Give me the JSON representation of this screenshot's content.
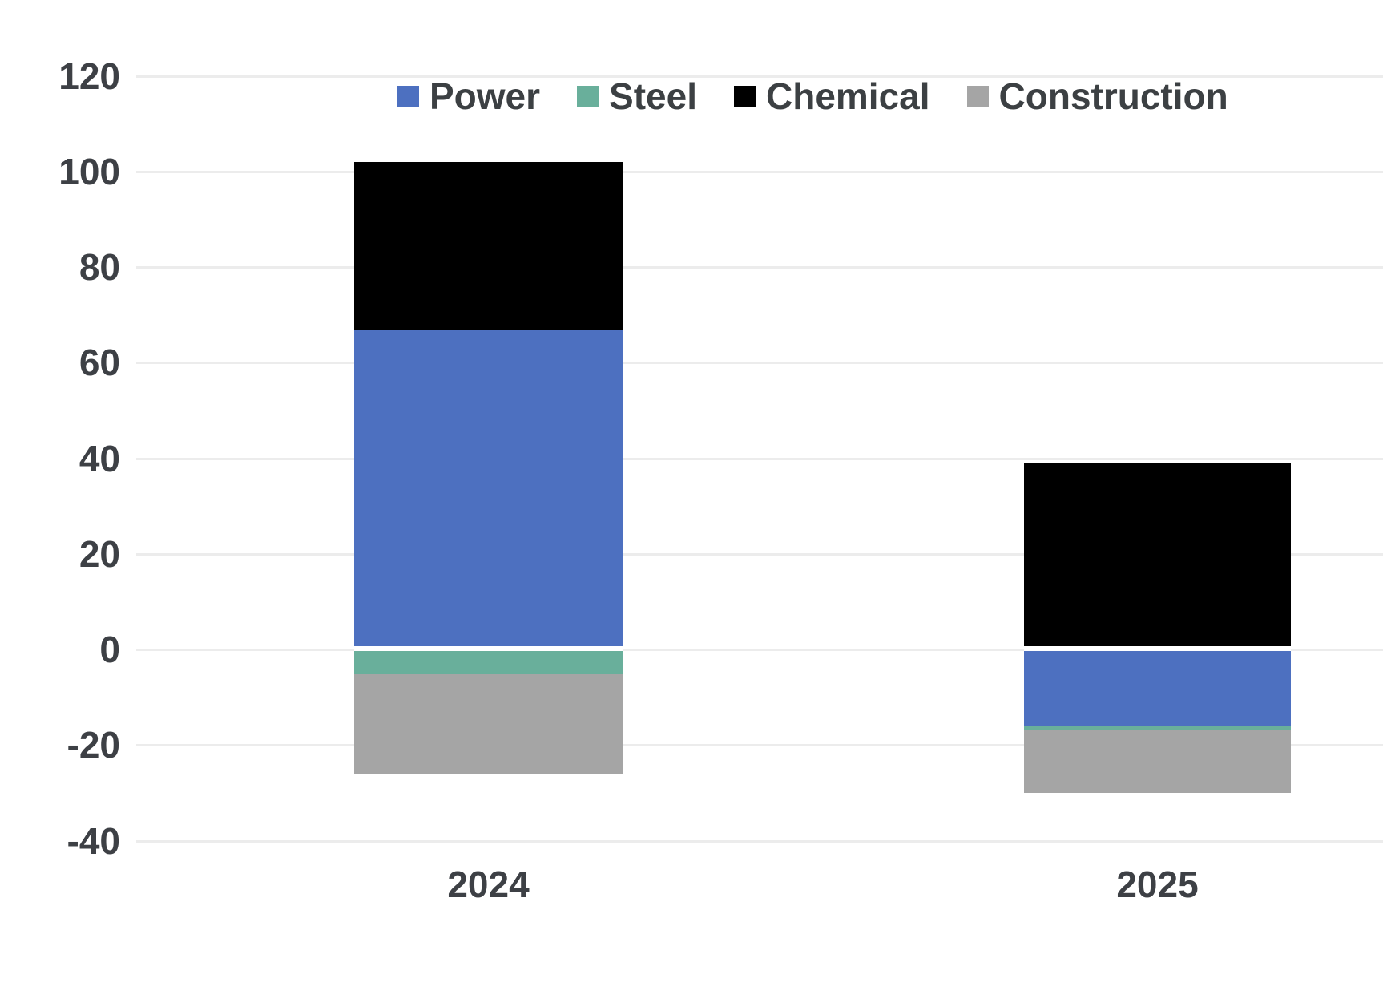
{
  "chart_data": {
    "type": "bar",
    "stacked": true,
    "title": "",
    "xlabel": "",
    "ylabel": "",
    "categories": [
      "2024",
      "2025"
    ],
    "series": [
      {
        "name": "Power",
        "color": "#4d70c0",
        "values": [
          67,
          -16
        ]
      },
      {
        "name": "Steel",
        "color": "#69af9b",
        "values": [
          -5,
          -1
        ]
      },
      {
        "name": "Chemical",
        "color": "#000000",
        "values": [
          35,
          39
        ]
      },
      {
        "name": "Construction",
        "color": "#a5a5a5",
        "values": [
          -21,
          -13
        ]
      }
    ],
    "ylim": [
      -40,
      120
    ],
    "yticks": [
      120,
      100,
      80,
      60,
      40,
      20,
      0,
      -20,
      -40
    ],
    "grid": true,
    "legend_position": "top",
    "axis_text_color": "#3d4045",
    "gridline_color": "#ececec",
    "zero_line_color": "#ffffff",
    "background": "#ffffff"
  }
}
